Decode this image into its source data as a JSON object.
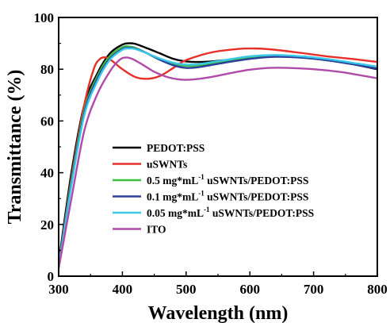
{
  "chart_data": {
    "type": "line",
    "xlabel": "Wavelength (nm)",
    "ylabel": "Transmittance (%)",
    "xlim": [
      300,
      800
    ],
    "ylim": [
      0,
      100
    ],
    "x_ticks": [
      "300",
      "400",
      "500",
      "600",
      "700",
      "800"
    ],
    "y_ticks": [
      "0",
      "20",
      "40",
      "60",
      "80",
      "100"
    ],
    "grid": false,
    "legend_position": "center-left",
    "legend": [
      {
        "label": "PEDOT:PSS",
        "sup": ""
      },
      {
        "label": "uSWNTs",
        "sup": ""
      },
      {
        "label": "0.5 mg*mL",
        "sup": "-1",
        "suffix": " uSWNTs/PEDOT:PSS"
      },
      {
        "label": "0.1 mg*mL",
        "sup": "-1",
        "suffix": " uSWNTs/PEDOT:PSS"
      },
      {
        "label": "0.05 mg*mL",
        "sup": "-1",
        "suffix": " uSWNTs/PEDOT:PSS"
      },
      {
        "label": "ITO",
        "sup": ""
      }
    ],
    "series": [
      {
        "name": "PEDOT:PSS",
        "color": "#000000",
        "points": [
          [
            300,
            5
          ],
          [
            320,
            40
          ],
          [
            340,
            66
          ],
          [
            360,
            78
          ],
          [
            380,
            86
          ],
          [
            400,
            89.5
          ],
          [
            410,
            90
          ],
          [
            420,
            89.8
          ],
          [
            440,
            88
          ],
          [
            460,
            86
          ],
          [
            480,
            84
          ],
          [
            500,
            83
          ],
          [
            520,
            82.8
          ],
          [
            540,
            83
          ],
          [
            560,
            83.5
          ],
          [
            600,
            84.5
          ],
          [
            640,
            85.2
          ],
          [
            680,
            84.8
          ],
          [
            720,
            83.5
          ],
          [
            760,
            82
          ],
          [
            800,
            80
          ]
        ]
      },
      {
        "name": "uSWNTs",
        "color": "#e8302a",
        "points": [
          [
            300,
            4
          ],
          [
            320,
            38
          ],
          [
            340,
            66
          ],
          [
            355,
            80
          ],
          [
            365,
            84
          ],
          [
            375,
            84.5
          ],
          [
            385,
            83
          ],
          [
            400,
            80
          ],
          [
            420,
            77
          ],
          [
            440,
            76.3
          ],
          [
            460,
            77.5
          ],
          [
            480,
            80.5
          ],
          [
            500,
            83.5
          ],
          [
            540,
            86.5
          ],
          [
            580,
            87.8
          ],
          [
            610,
            88
          ],
          [
            640,
            87.5
          ],
          [
            680,
            86.3
          ],
          [
            720,
            85
          ],
          [
            760,
            84
          ],
          [
            800,
            82.8
          ]
        ]
      },
      {
        "name": "0.5 mg*mL-1 uSWNTs/PEDOT:PSS",
        "color": "#3fbf3f",
        "points": [
          [
            300,
            4
          ],
          [
            320,
            37
          ],
          [
            340,
            64
          ],
          [
            360,
            77
          ],
          [
            380,
            85
          ],
          [
            400,
            88.5
          ],
          [
            410,
            88.8
          ],
          [
            420,
            88.3
          ],
          [
            440,
            86
          ],
          [
            460,
            83.5
          ],
          [
            480,
            82
          ],
          [
            500,
            81.3
          ],
          [
            520,
            81.5
          ],
          [
            560,
            83
          ],
          [
            600,
            84.5
          ],
          [
            640,
            85
          ],
          [
            680,
            84.5
          ],
          [
            720,
            83.5
          ],
          [
            760,
            82
          ],
          [
            800,
            80.5
          ]
        ]
      },
      {
        "name": "0.1 mg*mL-1 uSWNTs/PEDOT:PSS",
        "color": "#2b3f9e",
        "points": [
          [
            300,
            4
          ],
          [
            320,
            36
          ],
          [
            340,
            63
          ],
          [
            360,
            76
          ],
          [
            380,
            84
          ],
          [
            400,
            87.8
          ],
          [
            410,
            88.3
          ],
          [
            420,
            88
          ],
          [
            440,
            86
          ],
          [
            460,
            83.5
          ],
          [
            480,
            81.5
          ],
          [
            500,
            80.5
          ],
          [
            520,
            80.8
          ],
          [
            560,
            82.5
          ],
          [
            600,
            84
          ],
          [
            640,
            84.8
          ],
          [
            680,
            84.5
          ],
          [
            720,
            83.5
          ],
          [
            760,
            82
          ],
          [
            800,
            80.2
          ]
        ]
      },
      {
        "name": "0.05 mg*mL-1 uSWNTs/PEDOT:PSS",
        "color": "#3ac8e8",
        "points": [
          [
            300,
            3.5
          ],
          [
            320,
            35
          ],
          [
            340,
            62
          ],
          [
            360,
            75
          ],
          [
            380,
            83.5
          ],
          [
            400,
            87.5
          ],
          [
            410,
            88
          ],
          [
            420,
            87.8
          ],
          [
            440,
            86
          ],
          [
            460,
            84
          ],
          [
            480,
            82.5
          ],
          [
            500,
            81.8
          ],
          [
            520,
            82
          ],
          [
            560,
            83.5
          ],
          [
            600,
            85
          ],
          [
            640,
            85.5
          ],
          [
            680,
            85
          ],
          [
            720,
            84
          ],
          [
            760,
            82.5
          ],
          [
            800,
            81
          ]
        ]
      },
      {
        "name": "ITO",
        "color": "#b04aa8",
        "points": [
          [
            300,
            3
          ],
          [
            320,
            30
          ],
          [
            340,
            56
          ],
          [
            360,
            70
          ],
          [
            380,
            79
          ],
          [
            395,
            83.5
          ],
          [
            405,
            84.5
          ],
          [
            415,
            84
          ],
          [
            430,
            82
          ],
          [
            450,
            79
          ],
          [
            470,
            77
          ],
          [
            490,
            76
          ],
          [
            510,
            76
          ],
          [
            540,
            77
          ],
          [
            570,
            78.5
          ],
          [
            600,
            79.8
          ],
          [
            630,
            80.5
          ],
          [
            660,
            80.5
          ],
          [
            700,
            80
          ],
          [
            740,
            79
          ],
          [
            770,
            77.8
          ],
          [
            800,
            76.5
          ]
        ]
      }
    ]
  }
}
